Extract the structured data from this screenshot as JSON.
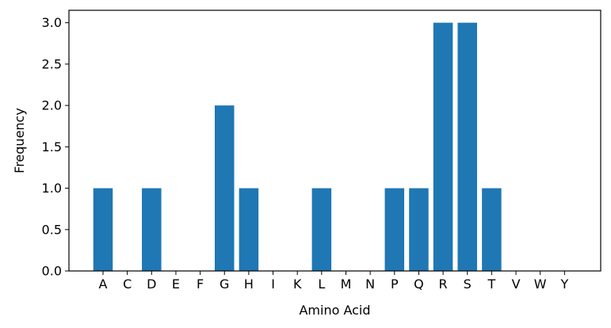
{
  "chart_data": {
    "type": "bar",
    "title": "",
    "xlabel": "Amino Acid",
    "ylabel": "Frequency",
    "categories": [
      "A",
      "C",
      "D",
      "E",
      "F",
      "G",
      "H",
      "I",
      "K",
      "L",
      "M",
      "N",
      "P",
      "Q",
      "R",
      "S",
      "T",
      "V",
      "W",
      "Y"
    ],
    "values": [
      1,
      0,
      1,
      0,
      0,
      2,
      1,
      0,
      0,
      1,
      0,
      0,
      1,
      1,
      3,
      3,
      1,
      0,
      0,
      0
    ],
    "ylim": [
      0,
      3.15
    ],
    "yticks": [
      0.0,
      0.5,
      1.0,
      1.5,
      2.0,
      2.5,
      3.0
    ],
    "ytick_labels": [
      "0.0",
      "0.5",
      "1.0",
      "1.5",
      "2.0",
      "2.5",
      "3.0"
    ],
    "grid": false,
    "bar_color": "#1f77b4"
  }
}
